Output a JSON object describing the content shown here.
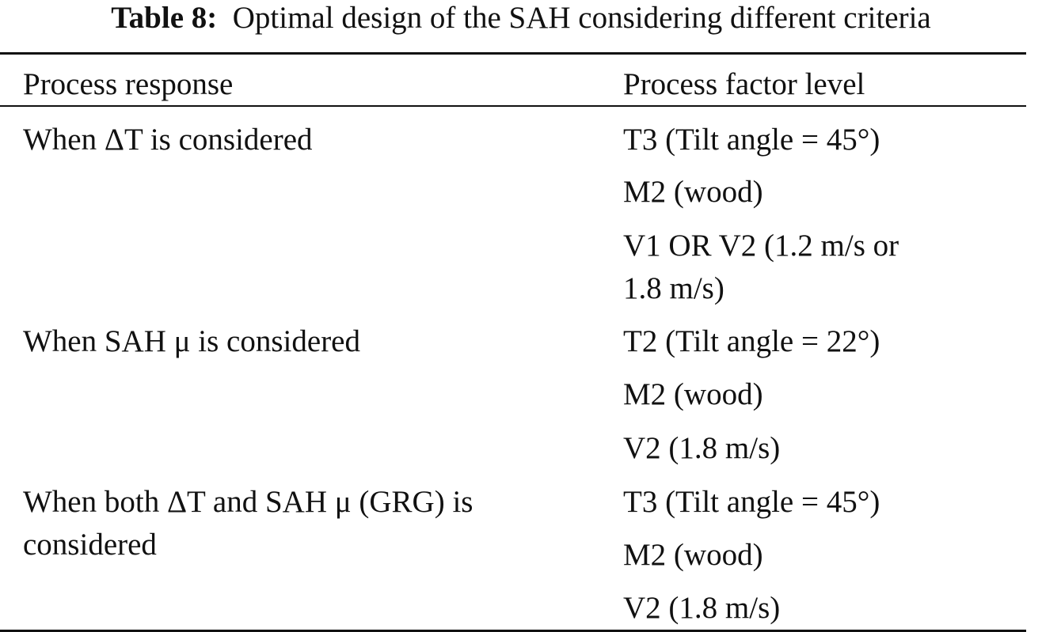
{
  "caption": {
    "label": "Table 8:",
    "text": "Optimal design of the SAH considering different criteria"
  },
  "table": {
    "headers": [
      "Process response",
      "Process factor level"
    ],
    "groups": [
      {
        "response": [
          "When ΔT is considered"
        ],
        "levels": [
          [
            "T3 (Tilt angle = 45°)"
          ],
          [
            "M2 (wood)"
          ],
          [
            "V1 OR V2 (1.2 m/s or",
            "1.8 m/s)"
          ]
        ]
      },
      {
        "response": [
          "When SAH μ is considered"
        ],
        "levels": [
          [
            "T2 (Tilt angle = 22°)"
          ],
          [
            "M2 (wood)"
          ],
          [
            "V2 (1.8 m/s)"
          ]
        ]
      },
      {
        "response": [
          "When both ΔT and SAH μ (GRG) is",
          "considered"
        ],
        "levels": [
          [
            "T3 (Tilt angle = 45°)"
          ],
          [
            "M2 (wood)"
          ],
          [
            "V2 (1.8 m/s)"
          ]
        ]
      }
    ]
  }
}
